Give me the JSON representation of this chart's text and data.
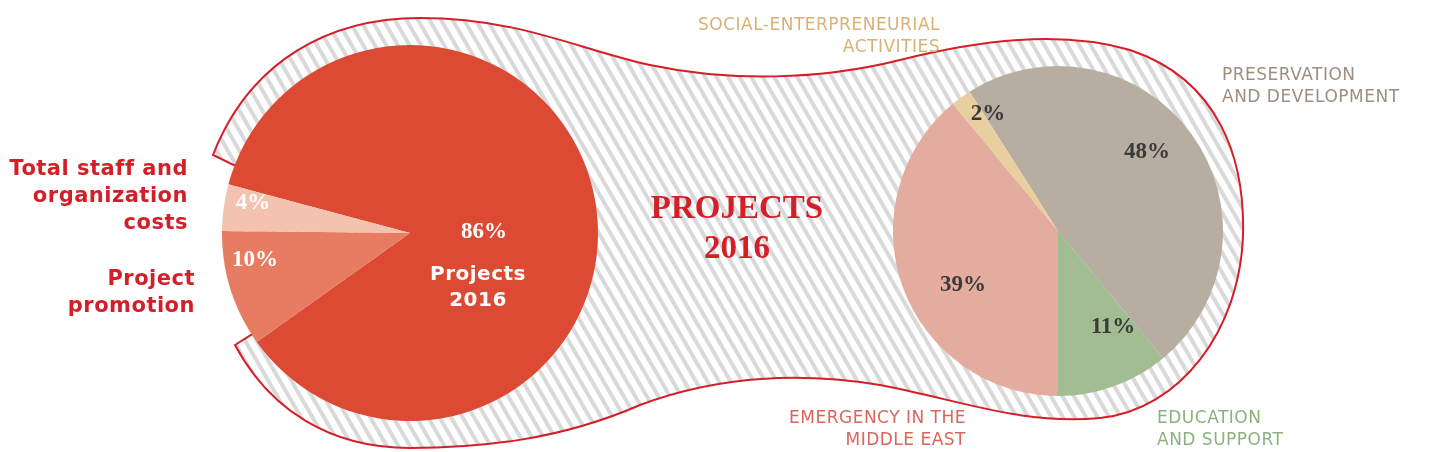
{
  "chart_data": [
    {
      "type": "pie",
      "categories": [
        "Projects\n2016",
        "Project\npromotion",
        "Total staff and\norganization\ncosts"
      ],
      "values": [
        86,
        10,
        4
      ],
      "colors": [
        "#dc4a33",
        "#e77c62",
        "#f4c3b0"
      ],
      "value_labels": [
        "86%",
        "10%",
        "4%"
      ]
    },
    {
      "type": "pie",
      "title": "PROJECTS\n2016",
      "categories": [
        "PRESERVATION\nAND DEVELOPMENT",
        "EDUCATION\nAND SUPPORT",
        "EMERGENCY IN THE\nMIDDLE EAST",
        "SOCIAL-ENTERPRENEURIAL\nACTIVITIES"
      ],
      "values": [
        48,
        11,
        39,
        2
      ],
      "colors": [
        "#b7ada1",
        "#a3bd93",
        "#e4ab9f",
        "#e8cfa0"
      ],
      "value_labels": [
        "48%",
        "11%",
        "39%",
        "2%"
      ]
    }
  ]
}
